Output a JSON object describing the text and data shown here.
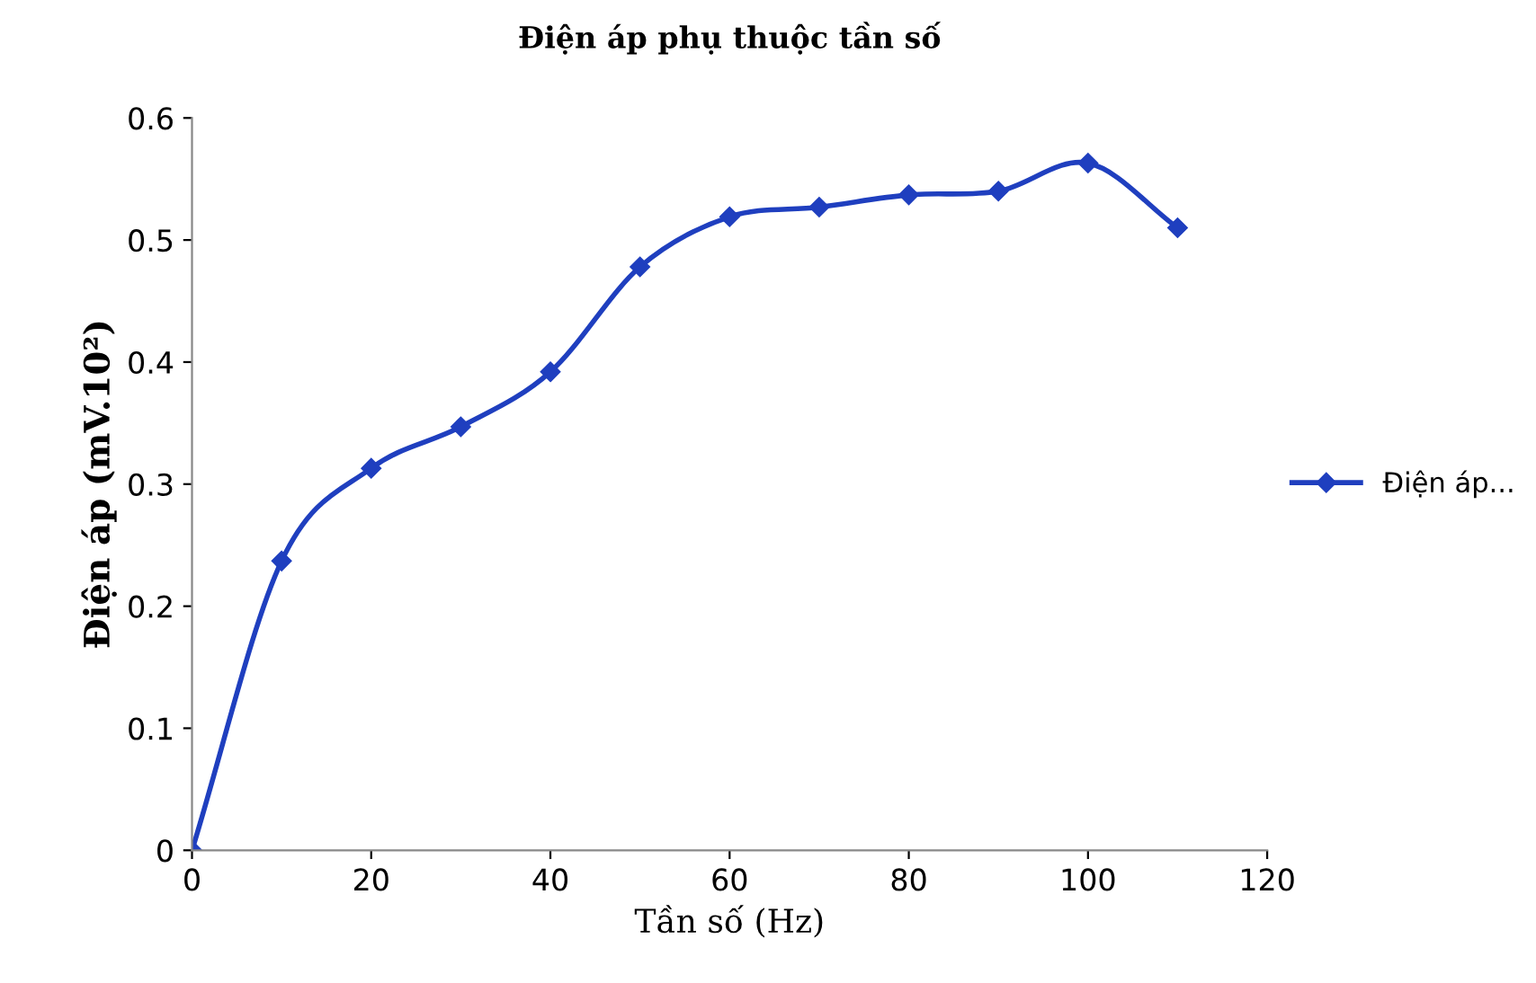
{
  "chart_data": {
    "type": "line",
    "title": "Điện áp phụ thuộc tần số",
    "xlabel": "Tần số (Hz)",
    "ylabel": "Điện áp (mV.10²)",
    "x": [
      0,
      10,
      20,
      30,
      40,
      50,
      60,
      70,
      80,
      90,
      100,
      110
    ],
    "series": [
      {
        "name": "Điện áp...",
        "color": "#1f3fbf",
        "values": [
          0,
          0.237,
          0.313,
          0.347,
          0.392,
          0.478,
          0.519,
          0.527,
          0.537,
          0.54,
          0.563,
          0.51
        ]
      }
    ],
    "xlim": [
      0,
      120
    ],
    "xticks": [
      0,
      20,
      40,
      60,
      80,
      100,
      120
    ],
    "ylim": [
      0,
      0.6
    ],
    "yticks": [
      0,
      0.1,
      0.2,
      0.3,
      0.4,
      0.5,
      0.6
    ],
    "grid": false,
    "legend": "right",
    "marker": "diamond",
    "line_style": "solid"
  }
}
